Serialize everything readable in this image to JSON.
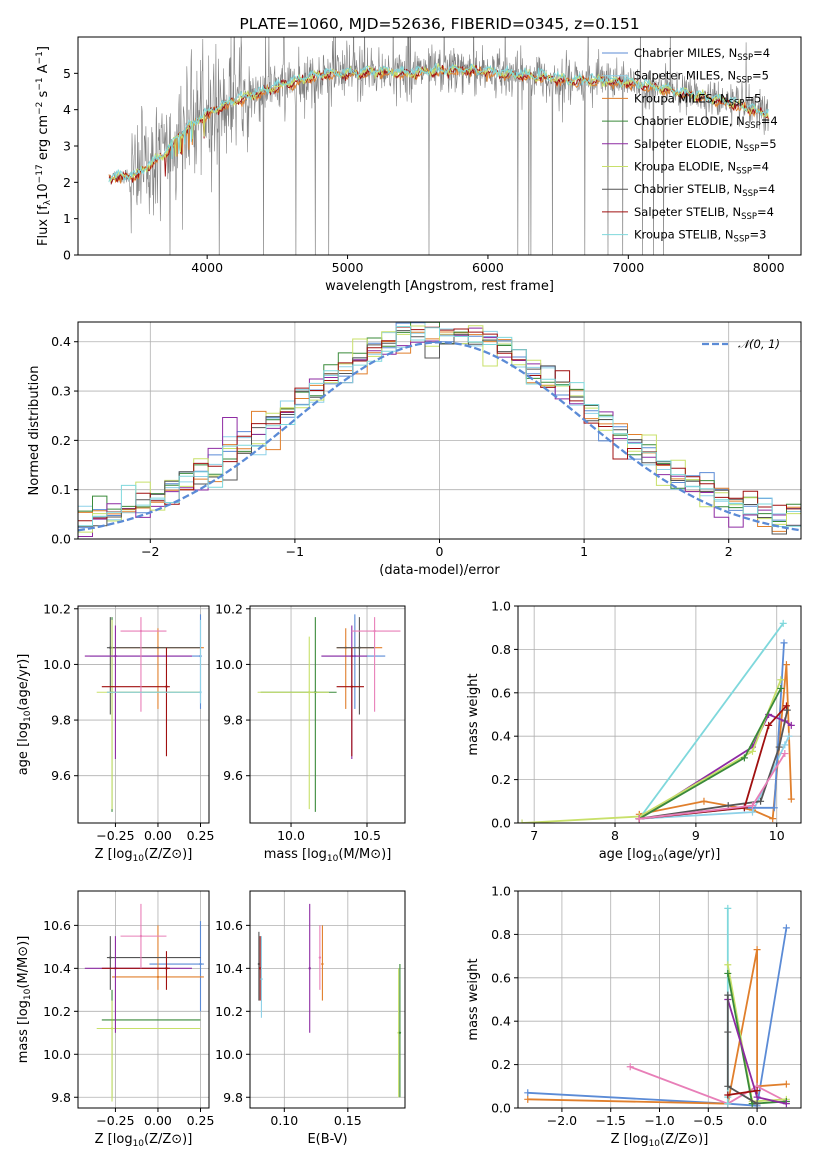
{
  "colors": {
    "chab_miles": "#5b8bd6",
    "salp_miles": "#8ed1e8",
    "krou_miles": "#e07f2c",
    "chab_elodie": "#3a8a3a",
    "salp_elodie": "#8e2ba3",
    "krou_elodie": "#c8e06a",
    "chab_stelib": "#555555",
    "salp_stelib": "#a01010",
    "krou_stelib": "#7fd8dc",
    "pink": "#e87fb8",
    "spectrum": "#808080",
    "gauss": "#5b8bd6",
    "grid": "#b0b0b0"
  },
  "chart_data": [
    {
      "id": "spectrum",
      "type": "line",
      "title": "PLATE=1060, MJD=52636, FIBERID=0345, z=0.151",
      "xlabel": "wavelength [Angstrom, rest frame]",
      "ylabel": "Flux [f",
      "ylabel_full": "Flux [fλ10−17 erg cm−2 s−1 A−1]",
      "xlim": [
        3080,
        8230
      ],
      "ylim": [
        0,
        6
      ],
      "xticks": [
        4000,
        5000,
        6000,
        7000,
        8000
      ],
      "yticks": [
        0,
        1,
        2,
        3,
        4,
        5
      ],
      "grid": false,
      "legend_placement": "right",
      "legend": [
        {
          "label": "Chabrier MILES, N",
          "sub": "SSP",
          "eq": "=4",
          "color_key": "chab_miles"
        },
        {
          "label": "Salpeter MILES, N",
          "sub": "SSP",
          "eq": "=5",
          "color_key": "salp_miles"
        },
        {
          "label": "Kroupa MILES, N",
          "sub": "SSP",
          "eq": "=5",
          "color_key": "krou_miles"
        },
        {
          "label": "Chabrier ELODIE, N",
          "sub": "SSP",
          "eq": "=4",
          "color_key": "chab_elodie"
        },
        {
          "label": "Salpeter ELODIE, N",
          "sub": "SSP",
          "eq": "=5",
          "color_key": "salp_elodie"
        },
        {
          "label": "Kroupa ELODIE, N",
          "sub": "SSP",
          "eq": "=4",
          "color_key": "krou_elodie"
        },
        {
          "label": "Chabrier STELIB, N",
          "sub": "SSP",
          "eq": "=4",
          "color_key": "chab_stelib"
        },
        {
          "label": "Salpeter STELIB, N",
          "sub": "SSP",
          "eq": "=4",
          "color_key": "salp_stelib"
        },
        {
          "label": "Kroupa STELIB, N",
          "sub": "SSP",
          "eq": "=3",
          "color_key": "krou_stelib"
        }
      ],
      "model_continuum": {
        "x": [
          3300,
          3500,
          3700,
          3800,
          3900,
          4000,
          4200,
          4400,
          4600,
          4800,
          5000,
          5200,
          5400,
          5600,
          5800,
          6000,
          6200,
          6400,
          6600,
          6800,
          7000,
          7200,
          7400,
          7600,
          7800,
          8000
        ],
        "y": [
          2.15,
          2.2,
          2.8,
          3.3,
          3.6,
          3.9,
          4.25,
          4.5,
          4.75,
          4.95,
          5.0,
          5.05,
          5.0,
          5.05,
          5.1,
          5.05,
          4.95,
          4.9,
          4.8,
          4.8,
          4.75,
          4.6,
          4.45,
          4.3,
          4.1,
          3.85
        ]
      }
    },
    {
      "id": "residuals",
      "type": "bar",
      "xlabel": "(data-model)/error",
      "ylabel": "Normed distribution",
      "xlim": [
        -2.5,
        2.5
      ],
      "ylim": [
        0,
        0.44
      ],
      "xticks": [
        -2,
        -1,
        0,
        1,
        2
      ],
      "yticks": [
        0.0,
        0.1,
        0.2,
        0.3,
        0.4
      ],
      "grid": true,
      "legend": {
        "label": "𝒩(0, 1)",
        "placement": "top-right"
      },
      "bin_width": 0.1
    },
    {
      "id": "age_vs_Z",
      "type": "scatter",
      "xlabel": "Z [log",
      "ylabel": "age  [log",
      "xlim": [
        -0.47,
        0.3
      ],
      "ylim": [
        9.43,
        10.21
      ],
      "xticks": [
        -0.25,
        0.0,
        0.25
      ],
      "xtick_labels": [
        "−0.25",
        "0.00",
        "0.25"
      ],
      "yticks": [
        9.6,
        9.8,
        10.0,
        10.2
      ],
      "grid": true,
      "points": [
        {
          "c": "chab_miles",
          "x": 0.25,
          "y": 10.03,
          "xe": [
            -0.4,
            0.25
          ],
          "ye": [
            9.84,
            10.18
          ]
        },
        {
          "c": "krou_miles",
          "x": 0.0,
          "y": 10.06,
          "xe": [
            -0.27,
            0.27
          ],
          "ye": [
            9.84,
            10.13
          ]
        },
        {
          "c": "chab_stelib",
          "x": -0.28,
          "y": 10.06,
          "xe": [
            -0.3,
            0.25
          ],
          "ye": [
            9.82,
            10.17
          ]
        },
        {
          "c": "chab_elodie",
          "x": -0.27,
          "y": 9.9,
          "xe": [
            -0.3,
            0.25
          ],
          "ye": [
            9.47,
            10.17
          ]
        },
        {
          "c": "krou_elodie",
          "x": -0.27,
          "y": 9.9,
          "xe": [
            -0.36,
            0.25
          ],
          "ye": [
            9.48,
            10.16
          ]
        },
        {
          "c": "salp_elodie",
          "x": -0.25,
          "y": 10.03,
          "xe": [
            -0.43,
            0.2
          ],
          "ye": [
            9.66,
            10.14
          ]
        },
        {
          "c": "salp_stelib",
          "x": 0.05,
          "y": 9.92,
          "xe": [
            -0.33,
            0.07
          ],
          "ye": [
            9.67,
            10.06
          ]
        },
        {
          "c": "pink",
          "x": -0.1,
          "y": 10.12,
          "xe": [
            -0.22,
            0.05
          ],
          "ye": [
            9.83,
            10.17
          ]
        },
        {
          "c": "salp_miles",
          "x": 0.25,
          "y": 9.9,
          "xe": [
            -0.3,
            0.25
          ],
          "ye": [
            9.86,
            10.16
          ]
        }
      ]
    },
    {
      "id": "age_vs_mass",
      "type": "scatter",
      "xlabel": "mass [log",
      "xlim": [
        9.73,
        10.75
      ],
      "ylim": [
        9.43,
        10.21
      ],
      "xticks": [
        10.0,
        10.5
      ],
      "xtick_labels": [
        "10.0",
        "10.5"
      ],
      "yticks": [
        9.6,
        9.8,
        10.0,
        10.2
      ],
      "grid": true,
      "points": [
        {
          "c": "chab_miles",
          "x": 10.42,
          "y": 10.03,
          "xe": [
            10.2,
            10.62
          ],
          "ye": [
            9.84,
            10.18
          ]
        },
        {
          "c": "krou_miles",
          "x": 10.36,
          "y": 10.06,
          "xe": [
            10.3,
            10.6
          ],
          "ye": [
            9.84,
            10.13
          ]
        },
        {
          "c": "chab_stelib",
          "x": 10.45,
          "y": 10.06,
          "xe": [
            10.3,
            10.55
          ],
          "ye": [
            9.82,
            10.17
          ]
        },
        {
          "c": "chab_elodie",
          "x": 10.16,
          "y": 9.9,
          "xe": [
            9.8,
            10.3
          ],
          "ye": [
            9.47,
            10.17
          ]
        },
        {
          "c": "krou_elodie",
          "x": 10.12,
          "y": 9.9,
          "xe": [
            9.78,
            10.25
          ],
          "ye": [
            9.48,
            10.1
          ]
        },
        {
          "c": "salp_elodie",
          "x": 10.4,
          "y": 10.03,
          "xe": [
            10.2,
            10.5
          ],
          "ye": [
            9.66,
            10.14
          ]
        },
        {
          "c": "salp_stelib",
          "x": 10.4,
          "y": 9.92,
          "xe": [
            10.3,
            10.48
          ],
          "ye": [
            9.67,
            10.06
          ]
        },
        {
          "c": "pink",
          "x": 10.55,
          "y": 10.12,
          "xe": [
            10.4,
            10.72
          ],
          "ye": [
            9.83,
            10.17
          ]
        }
      ]
    },
    {
      "id": "massweight_vs_age",
      "type": "line",
      "xlabel": "age  [log",
      "ylabel": "mass weight",
      "xlim": [
        6.8,
        10.3
      ],
      "ylim": [
        0,
        1
      ],
      "xticks": [
        7,
        8,
        9,
        10
      ],
      "yticks": [
        0.0,
        0.2,
        0.4,
        0.6,
        0.8,
        1.0
      ],
      "grid": true,
      "series": [
        {
          "c": "krou_miles",
          "x": [
            8.3,
            9.1,
            9.7,
            9.95,
            10.12,
            10.18
          ],
          "y": [
            0.04,
            0.1,
            0.06,
            0.02,
            0.73,
            0.11
          ]
        },
        {
          "c": "salp_miles",
          "x": [
            8.3,
            9.7,
            10.1,
            10.15
          ],
          "y": [
            0.02,
            0.05,
            0.36,
            0.4
          ]
        },
        {
          "c": "chab_miles",
          "x": [
            8.3,
            9.6,
            9.97,
            10.09
          ],
          "y": [
            0.02,
            0.07,
            0.07,
            0.83
          ]
        },
        {
          "c": "krou_stelib",
          "x": [
            8.3,
            10.08
          ],
          "y": [
            0.02,
            0.92
          ]
        },
        {
          "c": "salp_elodie",
          "x": [
            8.3,
            9.7,
            9.9,
            10.1,
            10.18
          ],
          "y": [
            0.02,
            0.35,
            0.5,
            0.47,
            0.45
          ]
        },
        {
          "c": "krou_elodie",
          "x": [
            6.85,
            8.3,
            9.7,
            10.05
          ],
          "y": [
            0.0,
            0.03,
            0.33,
            0.66
          ]
        },
        {
          "c": "chab_elodie",
          "x": [
            8.3,
            9.6,
            10.05
          ],
          "y": [
            0.02,
            0.3,
            0.62
          ]
        },
        {
          "c": "chab_stelib",
          "x": [
            8.3,
            9.4,
            9.8,
            10.03,
            10.13
          ],
          "y": [
            0.02,
            0.08,
            0.1,
            0.35,
            0.52
          ]
        },
        {
          "c": "salp_stelib",
          "x": [
            8.3,
            9.6,
            9.9,
            10.12
          ],
          "y": [
            0.02,
            0.07,
            0.45,
            0.54
          ]
        },
        {
          "c": "pink",
          "x": [
            8.3,
            9.7,
            10.1
          ],
          "y": [
            0.02,
            0.08,
            0.32
          ]
        }
      ]
    },
    {
      "id": "mass_vs_Z",
      "type": "scatter",
      "xlabel": "Z [log",
      "ylabel": "mass [log",
      "xlim": [
        -0.47,
        0.3
      ],
      "ylim": [
        9.75,
        10.76
      ],
      "xticks": [
        -0.25,
        0.0,
        0.25
      ],
      "xtick_labels": [
        "−0.25",
        "0.00",
        "0.25"
      ],
      "yticks": [
        9.8,
        10.0,
        10.2,
        10.4,
        10.6
      ],
      "grid": true,
      "points": [
        {
          "c": "chab_miles",
          "x": 0.25,
          "y": 10.42,
          "xe": [
            -0.05,
            0.27
          ],
          "ye": [
            10.2,
            10.62
          ]
        },
        {
          "c": "krou_miles",
          "x": 0.0,
          "y": 10.36,
          "xe": [
            -0.27,
            0.27
          ],
          "ye": [
            10.3,
            10.6
          ]
        },
        {
          "c": "chab_stelib",
          "x": -0.28,
          "y": 10.45,
          "xe": [
            -0.3,
            0.25
          ],
          "ye": [
            10.3,
            10.55
          ]
        },
        {
          "c": "chab_elodie",
          "x": -0.27,
          "y": 10.16,
          "xe": [
            -0.33,
            0.25
          ],
          "ye": [
            9.8,
            10.3
          ]
        },
        {
          "c": "krou_elodie",
          "x": -0.27,
          "y": 10.12,
          "xe": [
            -0.36,
            0.25
          ],
          "ye": [
            9.78,
            10.25
          ]
        },
        {
          "c": "salp_elodie",
          "x": -0.25,
          "y": 10.4,
          "xe": [
            -0.43,
            0.2
          ],
          "ye": [
            10.1,
            10.55
          ]
        },
        {
          "c": "salp_stelib",
          "x": 0.05,
          "y": 10.4,
          "xe": [
            -0.33,
            0.07
          ],
          "ye": [
            10.3,
            10.48
          ]
        },
        {
          "c": "pink",
          "x": -0.1,
          "y": 10.55,
          "xe": [
            -0.22,
            0.05
          ],
          "ye": [
            10.4,
            10.7
          ]
        }
      ]
    },
    {
      "id": "mass_vs_ebv",
      "type": "scatter",
      "xlabel": "E(B-V)",
      "xlim": [
        0.073,
        0.195
      ],
      "ylim": [
        9.75,
        10.76
      ],
      "xticks": [
        0.1,
        0.15
      ],
      "xtick_labels": [
        "0.10",
        "0.15"
      ],
      "yticks": [
        9.8,
        10.0,
        10.2,
        10.4,
        10.6
      ],
      "grid": true,
      "points": [
        {
          "c": "chab_stelib",
          "x": 0.08,
          "y": 10.42,
          "ye": [
            10.25,
            10.57
          ]
        },
        {
          "c": "salp_stelib",
          "x": 0.081,
          "y": 10.4,
          "ye": [
            10.25,
            10.55
          ]
        },
        {
          "c": "salp_miles",
          "x": 0.082,
          "y": 10.35,
          "ye": [
            10.17,
            10.55
          ]
        },
        {
          "c": "salp_elodie",
          "x": 0.12,
          "y": 10.4,
          "ye": [
            10.1,
            10.7
          ]
        },
        {
          "c": "krou_miles",
          "x": 0.13,
          "y": 10.42,
          "ye": [
            10.25,
            10.6
          ]
        },
        {
          "c": "pink",
          "x": 0.128,
          "y": 10.45,
          "ye": [
            10.3,
            10.6
          ]
        },
        {
          "c": "krou_elodie",
          "x": 0.19,
          "y": 10.1,
          "ye": [
            9.8,
            10.4
          ]
        },
        {
          "c": "chab_elodie",
          "x": 0.191,
          "y": 10.1,
          "ye": [
            9.8,
            10.42
          ]
        }
      ]
    },
    {
      "id": "massweight_vs_Z",
      "type": "line",
      "xlabel": "Z [log",
      "ylabel": "mass weight",
      "xlim": [
        -2.45,
        0.45
      ],
      "ylim": [
        0,
        1
      ],
      "xticks": [
        -2.0,
        -1.5,
        -1.0,
        -0.5,
        0.0
      ],
      "xtick_labels": [
        "−2.0",
        "−1.5",
        "−1.0",
        "−0.5",
        "0.0"
      ],
      "yticks": [
        0.0,
        0.2,
        0.4,
        0.6,
        0.8,
        1.0
      ],
      "grid": true,
      "series": [
        {
          "c": "chab_miles",
          "x": [
            -2.35,
            -0.3,
            0.0,
            0.3
          ],
          "y": [
            0.07,
            0.02,
            0.01,
            0.83
          ]
        },
        {
          "c": "krou_miles",
          "x": [
            -2.35,
            -0.3,
            0.0,
            0.0,
            0.3
          ],
          "y": [
            0.04,
            0.02,
            0.73,
            0.1,
            0.11
          ]
        },
        {
          "c": "pink",
          "x": [
            -1.3,
            -0.3,
            0.0,
            0.3
          ],
          "y": [
            0.19,
            0.02,
            0.1,
            0.03
          ]
        },
        {
          "c": "krou_stelib",
          "x": [
            -0.3,
            -0.3,
            -0.3
          ],
          "y": [
            0.92,
            0.05,
            0.02
          ]
        },
        {
          "c": "krou_elodie",
          "x": [
            -0.3,
            -0.05,
            0.3
          ],
          "y": [
            0.66,
            0.03,
            0.04
          ]
        },
        {
          "c": "chab_elodie",
          "x": [
            -0.3,
            -0.05,
            0.3
          ],
          "y": [
            0.62,
            0.02,
            0.03
          ]
        },
        {
          "c": "salp_elodie",
          "x": [
            -0.3,
            0.0,
            0.3
          ],
          "y": [
            0.5,
            0.05,
            0.02
          ]
        },
        {
          "c": "chab_stelib",
          "x": [
            -0.3,
            -0.3,
            -0.3,
            0.0
          ],
          "y": [
            0.52,
            0.35,
            0.1,
            0.02
          ]
        },
        {
          "c": "salp_stelib",
          "x": [
            -0.3,
            0.0
          ],
          "y": [
            0.06,
            0.08
          ]
        }
      ]
    }
  ]
}
